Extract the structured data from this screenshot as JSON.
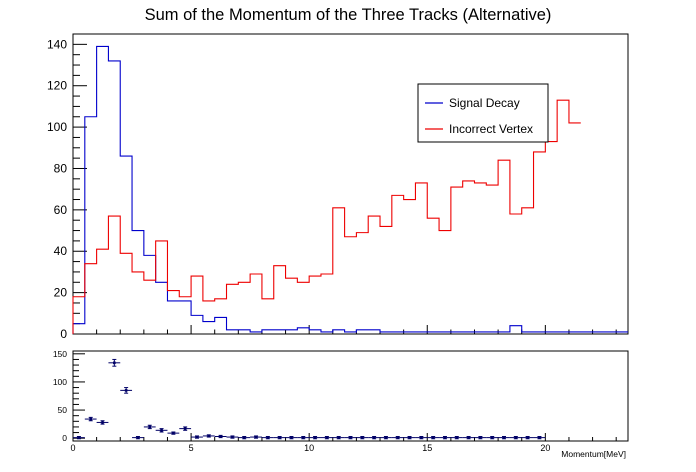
{
  "chart_data": [
    {
      "type": "histogram",
      "title": "Sum of the Momentum of the Three Tracks (Alternative)",
      "xlabel": "",
      "ylabel": "",
      "xlim": [
        0,
        23.5
      ],
      "ylim": [
        0,
        145
      ],
      "bin_width": 0.5,
      "x_ticks": [
        0,
        5,
        10,
        15,
        20
      ],
      "y_ticks": [
        0,
        20,
        40,
        60,
        80,
        100,
        120,
        140
      ],
      "legend_position": "top-right",
      "series": [
        {
          "name": "Signal Decay",
          "color": "#0000cc",
          "values": [
            5,
            105,
            139,
            132,
            86,
            50,
            38,
            25,
            16,
            16,
            9,
            6,
            8,
            2,
            2,
            1,
            2,
            2,
            2,
            3,
            2,
            1,
            2,
            1,
            2,
            2,
            1,
            1,
            1,
            1,
            1,
            1,
            1,
            1,
            1,
            1,
            1,
            4,
            1,
            1,
            1,
            1,
            1,
            1,
            1,
            1,
            1
          ]
        },
        {
          "name": "Incorrect Vertex",
          "color": "#ee0000",
          "values": [
            18,
            34,
            41,
            57,
            39,
            30,
            26,
            45,
            21,
            18,
            28,
            16,
            17,
            24,
            25,
            29,
            17,
            33,
            27,
            25,
            28,
            29,
            61,
            47,
            49,
            57,
            52,
            67,
            65,
            73,
            56,
            50,
            71,
            74,
            73,
            72,
            84,
            58,
            61,
            88,
            93,
            113,
            102
          ]
        }
      ]
    },
    {
      "type": "scatter",
      "title": "",
      "xlabel": "Momentum[MeV]",
      "ylabel": "",
      "xlim": [
        0,
        23.5
      ],
      "ylim": [
        -5,
        155
      ],
      "x_ticks": [
        0,
        5,
        10,
        15,
        20
      ],
      "y_ticks": [
        0,
        50,
        100,
        150
      ],
      "error_bars": true,
      "series": [
        {
          "name": "",
          "color": "#000066",
          "x": [
            0.25,
            0.75,
            1.25,
            1.75,
            2.25,
            2.75,
            3.25,
            3.75,
            4.25,
            4.75,
            5.25,
            5.75,
            6.25,
            6.75,
            7.25,
            7.75,
            8.25,
            8.75,
            9.25,
            9.75,
            10.25,
            10.75,
            11.25,
            11.75,
            12.25,
            12.75,
            13.25,
            13.75,
            14.25,
            14.75,
            15.25,
            15.75,
            16.25,
            16.75,
            17.25,
            17.75,
            18.25,
            18.75,
            19.25,
            19.75
          ],
          "y": [
            1,
            34,
            28,
            134,
            85,
            1,
            20,
            14,
            9,
            17,
            2,
            4,
            3,
            2,
            1,
            2,
            1,
            1,
            1,
            1,
            1,
            1,
            1,
            1,
            1,
            1,
            1,
            1,
            1,
            1,
            1,
            1,
            1,
            1,
            1,
            1,
            1,
            1,
            1,
            1
          ],
          "yerr": [
            2,
            3,
            3,
            6,
            5,
            2,
            3,
            3,
            2,
            3,
            2,
            2,
            2,
            2,
            2,
            2,
            2,
            2,
            2,
            2,
            2,
            2,
            2,
            2,
            2,
            2,
            2,
            2,
            2,
            2,
            2,
            2,
            2,
            2,
            2,
            2,
            2,
            2,
            2,
            2
          ]
        }
      ]
    }
  ]
}
